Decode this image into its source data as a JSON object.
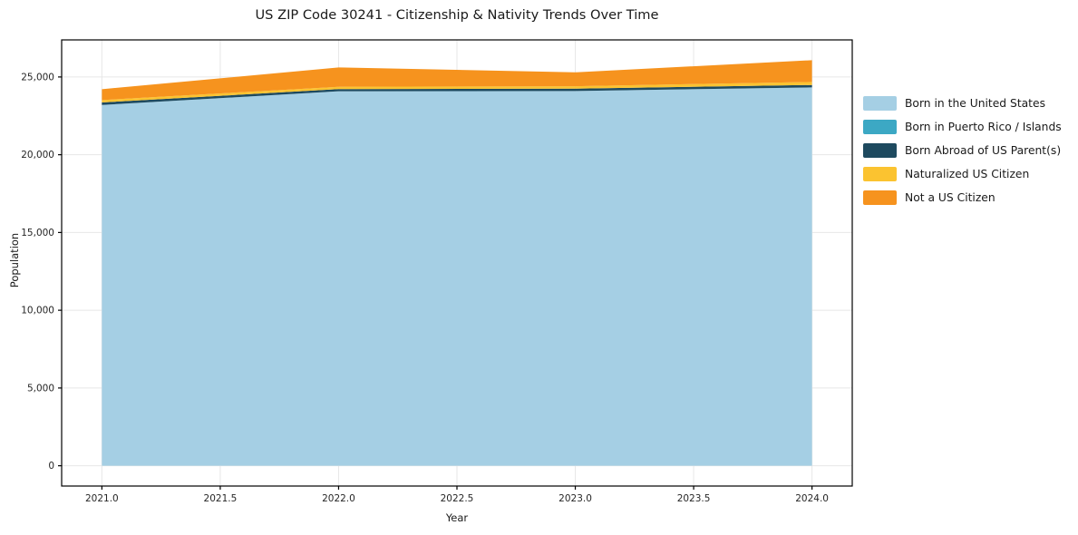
{
  "title": "US ZIP Code 30241 - Citizenship & Nativity Trends Over Time",
  "chart_data": {
    "type": "area",
    "stacked": true,
    "title": "US ZIP Code 30241 - Citizenship & Nativity Trends Over Time",
    "xlabel": "Year",
    "ylabel": "Population",
    "x": [
      2021,
      2022,
      2023,
      2024
    ],
    "series": [
      {
        "name": "Born in the United States",
        "color": "#A5CFE4",
        "values": [
          23200,
          24080,
          24100,
          24330
        ]
      },
      {
        "name": "Born in Puerto Rico / Islands",
        "color": "#3CA8C4",
        "values": [
          0,
          0,
          0,
          0
        ]
      },
      {
        "name": "Born Abroad of US Parent(s)",
        "color": "#1E4A5F",
        "values": [
          160,
          140,
          150,
          155
        ]
      },
      {
        "name": "Naturalized US Citizen",
        "color": "#FBC330",
        "values": [
          155,
          150,
          155,
          195
        ]
      },
      {
        "name": "Not a US Citizen",
        "color": "#F6931E",
        "values": [
          700,
          1245,
          895,
          1400
        ]
      }
    ],
    "xticks": [
      2021.0,
      2021.5,
      2022.0,
      2022.5,
      2023.0,
      2023.5,
      2024.0
    ],
    "xtick_labels": [
      "2021.0",
      "2021.5",
      "2022.0",
      "2022.5",
      "2023.0",
      "2023.5",
      "2024.0"
    ],
    "yticks": [
      0,
      5000,
      10000,
      15000,
      20000,
      25000
    ],
    "ytick_labels": [
      "0",
      "5,000",
      "10,000",
      "15,000",
      "20,000",
      "25,000"
    ],
    "xlim": [
      2020.83,
      2024.17
    ],
    "ylim": [
      -1304,
      27384
    ],
    "grid": true,
    "legend_position": "outside-right",
    "grid_color": "#E7E7E7",
    "axis_color": "#000000",
    "tick_text_color": "#262626"
  }
}
